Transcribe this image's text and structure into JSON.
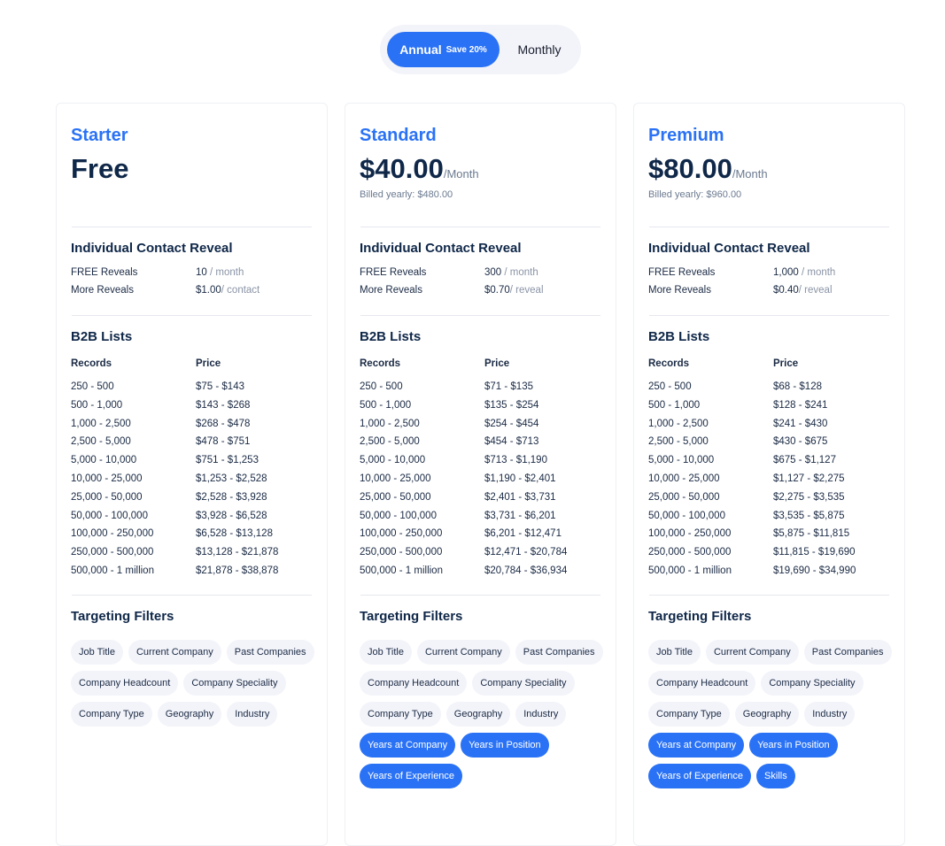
{
  "toggle": {
    "annual": "Annual",
    "save": "Save 20%",
    "monthly": "Monthly",
    "selected": "Annual"
  },
  "accent": "#2a72f5",
  "labels": {
    "reveal_title": "Individual Contact Reveal",
    "free_reveals": "FREE Reveals",
    "more_reveals": "More Reveals",
    "b2b_title": "B2B Lists",
    "records": "Records",
    "price": "Price",
    "targeting_title": "Targeting Filters"
  },
  "plans": [
    {
      "name": "Starter",
      "price": "Free",
      "per": "",
      "billed": "",
      "free_count": "10",
      "free_unit": " / month",
      "more_price": "$1.00",
      "more_unit": "/ contact",
      "records": [
        "250 - 500",
        "500 - 1,000",
        "1,000 - 2,500",
        "2,500 - 5,000",
        "5,000 - 10,000",
        "10,000 - 25,000",
        "25,000 - 50,000",
        "50,000 - 100,000",
        "100,000 - 250,000",
        "250,000 - 500,000",
        "500,000 - 1 million"
      ],
      "prices": [
        "$75 - $143",
        "$143 - $268",
        "$268 - $478",
        "$478 - $751",
        "$751 - $1,253",
        "$1,253 - $2,528",
        "$2,528 - $3,928",
        "$3,928 - $6,528",
        "$6,528 - $13,128",
        "$13,128 - $21,878",
        "$21,878 - $38,878"
      ],
      "filters": [
        {
          "label": "Job Title",
          "active": false
        },
        {
          "label": "Current Company",
          "active": false
        },
        {
          "label": "Past Companies",
          "active": false
        },
        {
          "label": "Company Headcount",
          "active": false
        },
        {
          "label": "Company Speciality",
          "active": false
        },
        {
          "label": "Company Type",
          "active": false
        },
        {
          "label": "Geography",
          "active": false
        },
        {
          "label": "Industry",
          "active": false
        }
      ]
    },
    {
      "name": "Standard",
      "price": "$40.00",
      "per": "/Month",
      "billed": "Billed yearly: $480.00",
      "free_count": "300",
      "free_unit": " / month",
      "more_price": "$0.70",
      "more_unit": "/ reveal",
      "records": [
        "250 - 500",
        "500 - 1,000",
        "1,000 - 2,500",
        "2,500 - 5,000",
        "5,000 - 10,000",
        "10,000 - 25,000",
        "25,000 - 50,000",
        "50,000 - 100,000",
        "100,000 - 250,000",
        "250,000 - 500,000",
        "500,000 - 1 million"
      ],
      "prices": [
        "$71 - $135",
        "$135 - $254",
        "$254 - $454",
        "$454 - $713",
        "$713 - $1,190",
        "$1,190 - $2,401",
        "$2,401 - $3,731",
        "$3,731 - $6,201",
        "$6,201 - $12,471",
        "$12,471 - $20,784",
        "$20,784 - $36,934"
      ],
      "filters": [
        {
          "label": "Job Title",
          "active": false
        },
        {
          "label": "Current Company",
          "active": false
        },
        {
          "label": "Past Companies",
          "active": false
        },
        {
          "label": "Company Headcount",
          "active": false
        },
        {
          "label": "Company Speciality",
          "active": false
        },
        {
          "label": "Company Type",
          "active": false
        },
        {
          "label": "Geography",
          "active": false
        },
        {
          "label": "Industry",
          "active": false
        },
        {
          "label": "Years at Company",
          "active": true
        },
        {
          "label": "Years in Position",
          "active": true
        },
        {
          "label": "Years of Experience",
          "active": true
        }
      ]
    },
    {
      "name": "Premium",
      "price": "$80.00",
      "per": "/Month",
      "billed": "Billed yearly: $960.00",
      "free_count": "1,000",
      "free_unit": " / month",
      "more_price": "$0.40",
      "more_unit": "/ reveal",
      "records": [
        "250 - 500",
        "500 - 1,000",
        "1,000 - 2,500",
        "2,500 - 5,000",
        "5,000 - 10,000",
        "10,000 - 25,000",
        "25,000 - 50,000",
        "50,000 - 100,000",
        "100,000 - 250,000",
        "250,000 - 500,000",
        "500,000 - 1 million"
      ],
      "prices": [
        "$68 - $128",
        "$128 - $241",
        "$241 - $430",
        "$430 - $675",
        "$675 - $1,127",
        "$1,127 - $2,275",
        "$2,275 - $3,535",
        "$3,535 - $5,875",
        "$5,875 - $11,815",
        "$11,815 - $19,690",
        "$19,690 - $34,990"
      ],
      "filters": [
        {
          "label": "Job Title",
          "active": false
        },
        {
          "label": "Current Company",
          "active": false
        },
        {
          "label": "Past Companies",
          "active": false
        },
        {
          "label": "Company Headcount",
          "active": false
        },
        {
          "label": "Company Speciality",
          "active": false
        },
        {
          "label": "Company Type",
          "active": false
        },
        {
          "label": "Geography",
          "active": false
        },
        {
          "label": "Industry",
          "active": false
        },
        {
          "label": "Years at Company",
          "active": true
        },
        {
          "label": "Years in Position",
          "active": true
        },
        {
          "label": "Years of Experience",
          "active": true
        },
        {
          "label": "Skills",
          "active": true
        }
      ]
    }
  ]
}
